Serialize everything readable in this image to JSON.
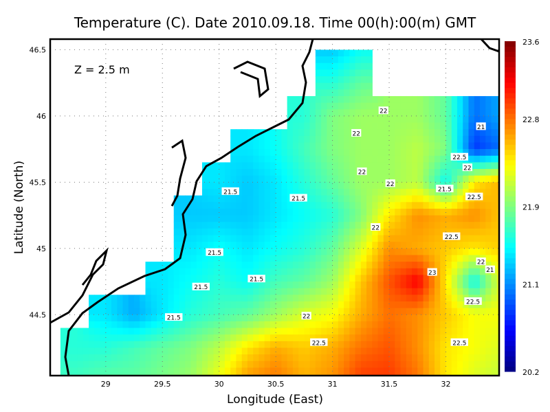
{
  "chart_data": {
    "type": "heatmap",
    "title": "Temperature (C). Date 2010.09.18. Time 00(h):00(m) GMT",
    "annotation": "Z = 2.5 m",
    "xlabel": "Longitude (East)",
    "ylabel": "Latitude (North)",
    "xlim": [
      28.51,
      32.47
    ],
    "ylim": [
      44.04,
      46.58
    ],
    "xticks": [
      "29",
      "29.5",
      "30",
      "30.5",
      "31",
      "31.5",
      "32"
    ],
    "yticks": [
      "44.5",
      "45",
      "45.5",
      "46",
      "46.5"
    ],
    "grid": true,
    "colorbar": {
      "min": 20.2,
      "max": 23.6,
      "ticks": [
        "20.2",
        "21.1",
        "21.9",
        "22.8",
        "23.6"
      ],
      "colormap": "jet"
    },
    "lon": [
      28.5,
      28.75,
      29,
      29.25,
      29.5,
      29.75,
      30,
      30.25,
      30.5,
      30.75,
      31,
      31.25,
      31.5,
      31.75,
      32,
      32.25,
      32.5
    ],
    "lat": [
      46.5,
      46.25,
      46.0,
      45.75,
      45.5,
      45.25,
      45.0,
      44.75,
      44.5,
      44.25,
      44.0
    ],
    "values": [
      [
        null,
        null,
        null,
        null,
        null,
        null,
        null,
        null,
        null,
        null,
        21.3,
        21.5,
        null,
        null,
        null,
        null,
        null
      ],
      [
        null,
        null,
        null,
        null,
        null,
        null,
        null,
        null,
        null,
        null,
        21.6,
        21.8,
        null,
        null,
        null,
        null,
        null
      ],
      [
        null,
        null,
        null,
        null,
        null,
        null,
        null,
        null,
        null,
        21.6,
        21.9,
        22.0,
        22.0,
        22.0,
        21.8,
        21.0,
        21.2
      ],
      [
        null,
        null,
        null,
        null,
        null,
        null,
        null,
        21.4,
        21.5,
        21.7,
        21.9,
        22.0,
        22.0,
        22.1,
        21.9,
        20.8,
        21.0
      ],
      [
        null,
        null,
        null,
        null,
        null,
        null,
        21.4,
        21.3,
        21.4,
        21.6,
        21.8,
        22.0,
        22.0,
        22.1,
        21.5,
        22.4,
        22.6
      ],
      [
        null,
        null,
        null,
        null,
        null,
        21.3,
        21.3,
        21.3,
        21.4,
        21.5,
        21.6,
        21.9,
        22.4,
        22.7,
        22.6,
        22.7,
        22.5
      ],
      [
        null,
        null,
        null,
        null,
        null,
        21.4,
        21.5,
        21.4,
        21.5,
        21.6,
        21.8,
        22.2,
        22.7,
        22.6,
        22.5,
        22.4,
        22.5
      ],
      [
        null,
        null,
        null,
        null,
        21.4,
        21.5,
        21.6,
        21.5,
        21.7,
        21.8,
        22.0,
        22.5,
        22.9,
        23.2,
        22.4,
        21.5,
        22.3
      ],
      [
        null,
        null,
        21.4,
        21.2,
        21.4,
        21.6,
        21.7,
        21.8,
        22.0,
        22.2,
        22.3,
        22.6,
        22.8,
        22.7,
        22.5,
        22.3,
        22.3
      ],
      [
        null,
        21.6,
        21.6,
        21.7,
        21.8,
        21.9,
        22.1,
        22.4,
        22.6,
        22.5,
        22.6,
        22.8,
        22.9,
        22.7,
        22.4,
        22.3,
        22.2
      ],
      [
        null,
        21.7,
        21.8,
        21.8,
        21.9,
        22.0,
        22.3,
        22.7,
        22.8,
        22.6,
        22.7,
        23.0,
        23.0,
        22.8,
        22.4,
        22.2,
        22.1
      ]
    ],
    "contour_labels": [
      {
        "text": "22",
        "lon": 31.45,
        "lat": 46.04
      },
      {
        "text": "22",
        "lon": 31.21,
        "lat": 45.87
      },
      {
        "text": "22",
        "lon": 31.26,
        "lat": 45.58
      },
      {
        "text": "22",
        "lon": 31.51,
        "lat": 45.49
      },
      {
        "text": "21.5",
        "lon": 30.1,
        "lat": 45.43
      },
      {
        "text": "21.5",
        "lon": 30.7,
        "lat": 45.38
      },
      {
        "text": "22",
        "lon": 31.38,
        "lat": 45.16
      },
      {
        "text": "21.5",
        "lon": 29.96,
        "lat": 44.97
      },
      {
        "text": "21.5",
        "lon": 30.33,
        "lat": 44.77
      },
      {
        "text": "21.5",
        "lon": 29.84,
        "lat": 44.71
      },
      {
        "text": "21.5",
        "lon": 29.6,
        "lat": 44.48
      },
      {
        "text": "22",
        "lon": 30.77,
        "lat": 44.49
      },
      {
        "text": "22.5",
        "lon": 30.88,
        "lat": 44.29
      },
      {
        "text": "22.5",
        "lon": 32.12,
        "lat": 44.29
      },
      {
        "text": "22.5",
        "lon": 32.24,
        "lat": 44.6
      },
      {
        "text": "22.5",
        "lon": 32.05,
        "lat": 45.09
      },
      {
        "text": "23",
        "lon": 31.88,
        "lat": 44.82
      },
      {
        "text": "22",
        "lon": 32.31,
        "lat": 44.9
      },
      {
        "text": "21",
        "lon": 32.39,
        "lat": 44.84
      },
      {
        "text": "21",
        "lon": 32.31,
        "lat": 45.92
      },
      {
        "text": "22.5",
        "lon": 32.12,
        "lat": 45.69
      },
      {
        "text": "22",
        "lon": 32.19,
        "lat": 45.61
      },
      {
        "text": "21.5",
        "lon": 31.99,
        "lat": 45.45
      },
      {
        "text": "22.5",
        "lon": 32.25,
        "lat": 45.39
      }
    ]
  }
}
